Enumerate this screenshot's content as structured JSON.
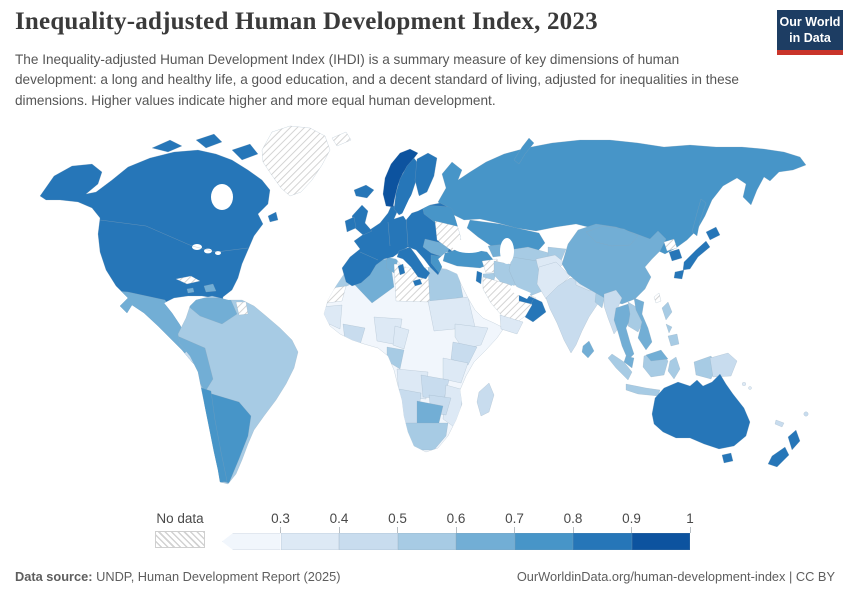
{
  "header": {
    "title": "Inequality-adjusted Human Development Index, 2023",
    "subtitle": "The Inequality-adjusted Human Development Index (IHDI) is a summary measure of key dimensions of human development: a long and healthy life, a good education, and a decent standard of living, adjusted for inequalities in these dimensions. Higher values indicate higher and more equal human development.",
    "logo": {
      "line1": "Our World",
      "line2": "in Data",
      "bg_color": "#1d3d63",
      "bar_color": "#c9342a"
    }
  },
  "legend": {
    "no_data_label": "No data"
  },
  "footer": {
    "datasource_label": "Data source:",
    "datasource_text": " UNDP, Human Development Report (2025)",
    "credit": "OurWorldinData.org/human-development-index | CC BY"
  },
  "chart_data": {
    "type": "choropleth",
    "title": "Inequality-adjusted Human Development Index, 2023",
    "legend_position": "bottom",
    "legend_arrow_below_min": true,
    "tick_labels": [
      "0.3",
      "0.4",
      "0.5",
      "0.6",
      "0.7",
      "0.8",
      "0.9",
      "1"
    ],
    "bins": [
      {
        "range": "<0.3",
        "label": "0.3",
        "color": "#f1f6fc"
      },
      {
        "range": "0.3-0.4",
        "label": "0.4",
        "color": "#dde9f5"
      },
      {
        "range": "0.4-0.5",
        "label": "0.5",
        "color": "#c8dcee"
      },
      {
        "range": "0.5-0.6",
        "label": "0.6",
        "color": "#a7cbe4"
      },
      {
        "range": "0.6-0.7",
        "label": "0.7",
        "color": "#72aed5"
      },
      {
        "range": "0.7-0.8",
        "label": "0.8",
        "color": "#4795c8"
      },
      {
        "range": "0.8-0.9",
        "label": "0.9",
        "color": "#2676b8"
      },
      {
        "range": "0.9-1",
        "label": "1",
        "color": "#0d539f"
      }
    ],
    "no_data": {
      "label": "No data",
      "pattern": "hatched"
    },
    "regions": {
      "united-states": "0.8-0.9",
      "canada": "0.8-0.9",
      "greenland": "no-data",
      "iceland": "0.8-0.9",
      "mexico": "0.6-0.7",
      "central-america": "0.4-0.5",
      "costa-rica-panama": "0.6-0.7",
      "cuba": "no-data",
      "jamaica": "0.6-0.7",
      "hispaniola": "0.6-0.7",
      "venezuela": "0.6-0.7",
      "colombia": "0.5-0.6",
      "ecuador": "0.5-0.6",
      "guyana": "0.5-0.6",
      "suriname": "no-data",
      "brazil": "0.5-0.6",
      "peru": "0.6-0.7",
      "bolivia": "0.5-0.6",
      "paraguay": "0.5-0.6",
      "chile": "0.7-0.8",
      "argentina": "0.7-0.8",
      "uruguay": "0.7-0.8",
      "norway": "0.9-1",
      "sweden": "0.8-0.9",
      "finland": "0.8-0.9",
      "united-kingdom": "0.8-0.9",
      "ireland": "0.8-0.9",
      "western-europe": "0.8-0.9",
      "italy": "0.8-0.9",
      "baltics-belarus": "0.7-0.8",
      "ukraine": "no-data",
      "balkans": "0.6-0.7",
      "greece": "0.7-0.8",
      "svalbard": "no-data",
      "russia": "0.7-0.8",
      "kazakhstan": "0.7-0.8",
      "central-asia": "0.5-0.6",
      "turkey": "0.7-0.8",
      "caucasus": "0.6-0.7",
      "syria": "no-data",
      "israel": "0.8-0.9",
      "jordan": "0.5-0.6",
      "iraq": "0.5-0.6",
      "iran": "0.5-0.6",
      "saudi-arabia": "no-data",
      "yemen": "0.3-0.4",
      "oman": "0.8-0.9",
      "united-arab-emirates": "0.8-0.9",
      "afghanistan": "0.3-0.4",
      "pakistan": "0.3-0.4",
      "india": "0.4-0.5",
      "nepal": "0.3-0.4",
      "bangladesh": "0.5-0.6",
      "sri-lanka": "0.6-0.7",
      "china": "0.6-0.7",
      "mongolia": "0.6-0.7",
      "north-korea": "no-data",
      "south-korea": "0.8-0.9",
      "japan": "0.8-0.9",
      "taiwan": "no-data",
      "myanmar": "0.4-0.5",
      "thailand": "0.6-0.7",
      "laos-cambodia": "0.5-0.6",
      "vietnam": "0.6-0.7",
      "malaysia": "0.6-0.7",
      "indonesia": "0.5-0.6",
      "philippines": "0.5-0.6",
      "papua-new-guinea": "0.4-0.5",
      "australia": "0.8-0.9",
      "new-zealand": "0.8-0.9",
      "fiji": "0.4-0.5",
      "new-caledonia": "0.4-0.5",
      "solomon-islands": "0.3-0.4",
      "morocco": "0.5-0.6",
      "western-sahara": "no-data",
      "algeria": "0.6-0.7",
      "tunisia": "0.6-0.7",
      "libya": "no-data",
      "egypt": "0.5-0.6",
      "sahel": "<0.3",
      "mauritania": "<0.3",
      "senegal-guinea": "0.3-0.4",
      "ghana-ivory-coast": "0.4-0.5",
      "nigeria": "0.3-0.4",
      "cameroon": "0.3-0.4",
      "gabon-congo": "0.5-0.6",
      "dr-congo": "<0.3",
      "south-sudan": "<0.3",
      "sudan": "0.3-0.4",
      "ethiopia": "0.3-0.4",
      "somalia": "<0.3",
      "kenya": "0.4-0.5",
      "tanzania": "0.3-0.4",
      "angola": "0.3-0.4",
      "zambia": "0.4-0.5",
      "mozambique": "0.3-0.4",
      "zimbabwe": "0.4-0.5",
      "botswana": "0.6-0.7",
      "namibia": "0.4-0.5",
      "south-africa": "0.5-0.6",
      "madagascar": "0.4-0.5"
    }
  }
}
